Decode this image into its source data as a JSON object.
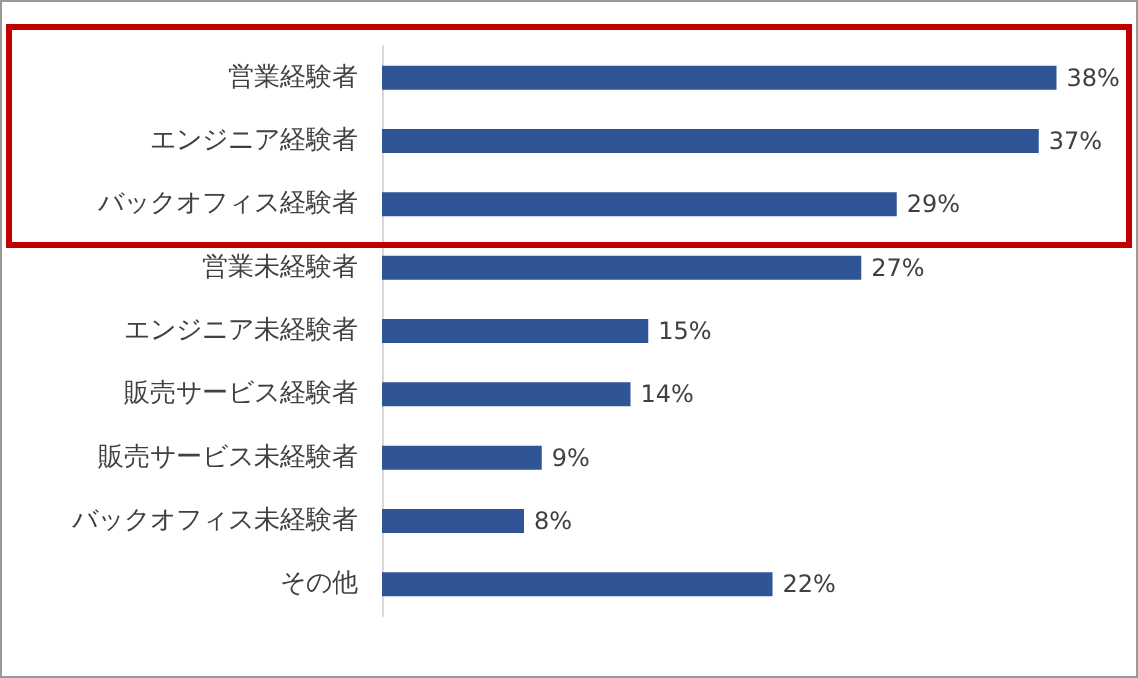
{
  "chart_data": {
    "type": "bar",
    "orientation": "horizontal",
    "categories": [
      "営業経験者",
      "エンジニア経験者",
      "バックオフィス経験者",
      "営業未経験者",
      "エンジニア未経験者",
      "販売サービス経験者",
      "販売サービス未経験者",
      "バックオフィス未経験者",
      "その他"
    ],
    "values": [
      38,
      37,
      29,
      27,
      15,
      14,
      9,
      8,
      22
    ],
    "value_labels": [
      "38%",
      "37%",
      "29%",
      "27%",
      "15%",
      "14%",
      "9%",
      "8%",
      "22%"
    ],
    "color": "#2f5597"
  }
}
